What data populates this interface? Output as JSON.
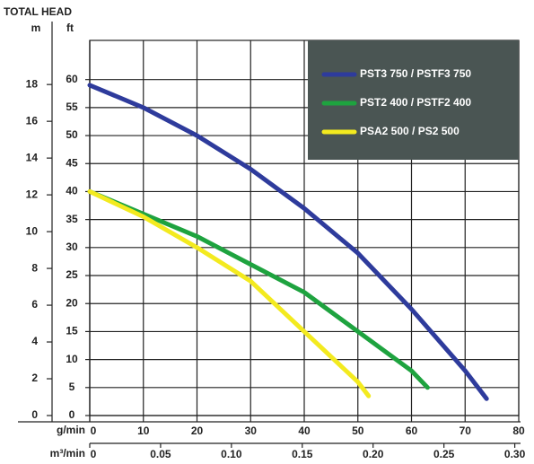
{
  "chart_data": {
    "type": "line",
    "y_label": "TOTAL HEAD",
    "y_unit": "ft",
    "y2_unit": "m",
    "x_unit": "g/min",
    "x2_unit": "m³/min",
    "xlim": [
      0,
      80
    ],
    "xticks": [
      0,
      10,
      20,
      30,
      40,
      50,
      60,
      70,
      80
    ],
    "x2lim": [
      0,
      0.3028
    ],
    "x2ticks": [
      0,
      0.05,
      {
        "value": 0.1,
        "label": "0.10"
      },
      0.15,
      {
        "value": 0.2,
        "label": "0.20"
      },
      0.25,
      {
        "value": 0.3,
        "label": "0.30"
      }
    ],
    "ylim": [
      0,
      67
    ],
    "yticks": [
      0,
      5,
      10,
      15,
      20,
      25,
      30,
      35,
      40,
      45,
      50,
      55,
      60
    ],
    "y2lim": [
      0,
      20.4
    ],
    "y2ticks": [
      0,
      2,
      4,
      6,
      8,
      10,
      12,
      14,
      16,
      18
    ],
    "grid": true,
    "legend": "upper right",
    "legend_background": "#4a5553",
    "series": [
      {
        "name": "PST3 750 / PSTF3 750",
        "color": "#2e3b9c",
        "x": [
          0,
          10,
          20,
          30,
          40,
          50,
          60,
          70,
          74
        ],
        "values": [
          59,
          55,
          50,
          44,
          37,
          29,
          19,
          8,
          3
        ]
      },
      {
        "name": "PST2 400 / PSTF2 400",
        "color": "#1ea33f",
        "x": [
          0,
          10,
          20,
          30,
          40,
          50,
          60,
          63
        ],
        "values": [
          40,
          36,
          32,
          27,
          22,
          15,
          8,
          5
        ]
      },
      {
        "name": "PSA2 500 / PS2 500",
        "color": "#f3ea1f",
        "x": [
          0,
          10,
          20,
          30,
          40,
          50,
          52
        ],
        "values": [
          40,
          35.5,
          30,
          24,
          15,
          6,
          3.5
        ]
      }
    ]
  }
}
